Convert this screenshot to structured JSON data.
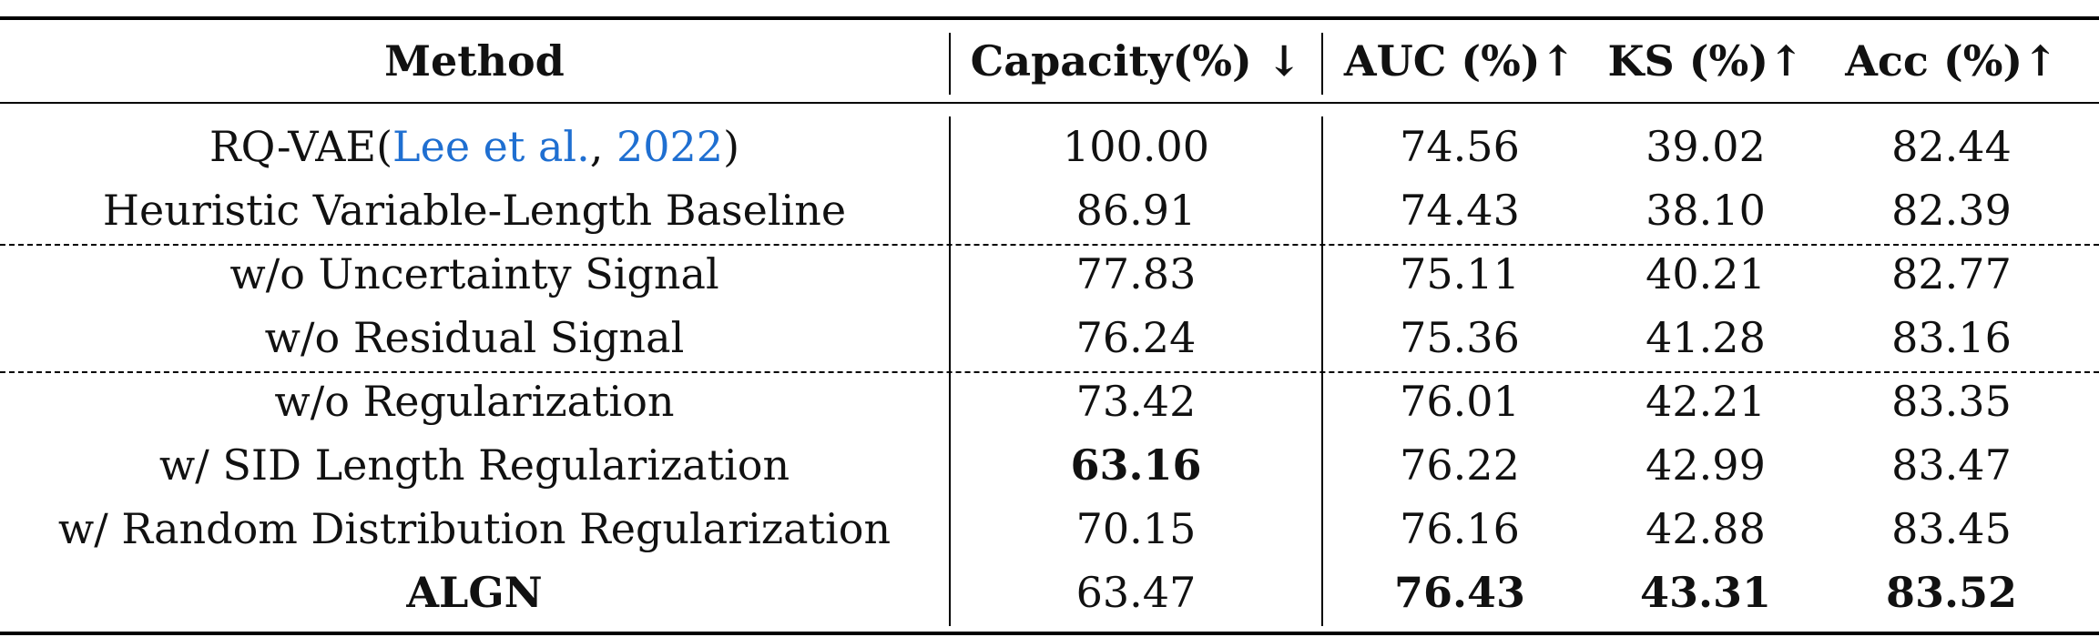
{
  "table": {
    "headers": {
      "method": "Method",
      "capacity": "Capacity(%) ↓",
      "auc": "AUC (%)↑",
      "ks": "KS (%)↑",
      "acc": "Acc (%)↑"
    },
    "rows": [
      {
        "method_prefix": "RQ-VAE(",
        "method_cite_author": "Lee et al.",
        "method_cite_sep": ", ",
        "method_cite_year": "2022",
        "method_suffix": ")",
        "capacity": "100.00",
        "auc": "74.56",
        "ks": "39.02",
        "acc": "82.44"
      },
      {
        "method": "Heuristic Variable-Length Baseline",
        "capacity": "86.91",
        "auc": "74.43",
        "ks": "38.10",
        "acc": "82.39"
      },
      {
        "method": "w/o Uncertainty Signal",
        "capacity": "77.83",
        "auc": "75.11",
        "ks": "40.21",
        "acc": "82.77"
      },
      {
        "method": "w/o Residual Signal",
        "capacity": "76.24",
        "auc": "75.36",
        "ks": "41.28",
        "acc": "83.16"
      },
      {
        "method": "w/o Regularization",
        "capacity": "73.42",
        "auc": "76.01",
        "ks": "42.21",
        "acc": "83.35"
      },
      {
        "method": "w/ SID Length Regularization",
        "capacity": "63.16",
        "auc": "76.22",
        "ks": "42.99",
        "acc": "83.47"
      },
      {
        "method": "w/ Random Distribution Regularization",
        "capacity": "70.15",
        "auc": "76.16",
        "ks": "42.88",
        "acc": "83.45"
      },
      {
        "method": "ALGN",
        "capacity": "63.47",
        "auc": "76.43",
        "ks": "43.31",
        "acc": "83.52"
      }
    ],
    "citation_color": "#1f6fd1"
  }
}
